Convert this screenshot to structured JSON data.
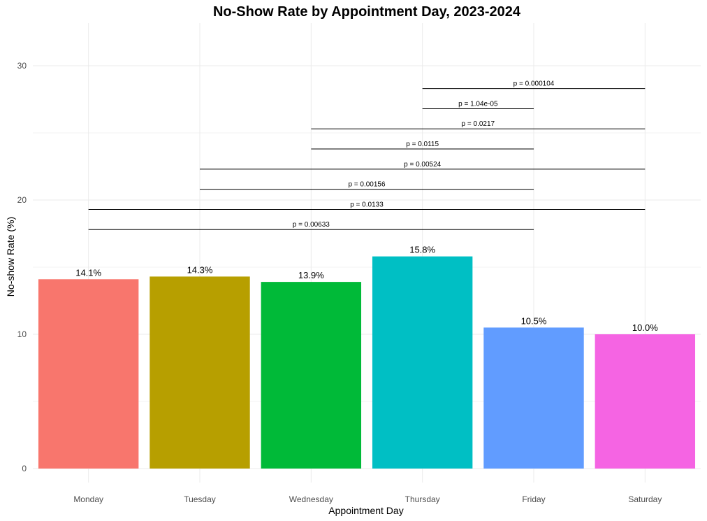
{
  "chart_data": {
    "type": "bar",
    "title": "No-Show Rate by Appointment Day, 2023-2024",
    "xlabel": "Appointment Day",
    "ylabel": "No-show Rate (%)",
    "ylim": [
      0,
      33
    ],
    "yticks": [
      0,
      10,
      20,
      30
    ],
    "grid": true,
    "legend": "none",
    "categories": [
      "Monday",
      "Tuesday",
      "Wednesday",
      "Thursday",
      "Friday",
      "Saturday"
    ],
    "values": [
      14.1,
      14.3,
      13.9,
      15.8,
      10.5,
      10.0
    ],
    "value_labels": [
      "14.1%",
      "14.3%",
      "13.9%",
      "15.8%",
      "10.5%",
      "10.0%"
    ],
    "colors": [
      "#F8766D",
      "#B79F00",
      "#00BA38",
      "#00BFC4",
      "#619CFF",
      "#F564E3"
    ],
    "comparisons": [
      {
        "from": "Monday",
        "to": "Friday",
        "y": 17.8,
        "label": "p = 0.00633"
      },
      {
        "from": "Monday",
        "to": "Saturday",
        "y": 19.3,
        "label": "p = 0.0133"
      },
      {
        "from": "Tuesday",
        "to": "Friday",
        "y": 20.8,
        "label": "p = 0.00156"
      },
      {
        "from": "Tuesday",
        "to": "Saturday",
        "y": 22.3,
        "label": "p = 0.00524"
      },
      {
        "from": "Wednesday",
        "to": "Friday",
        "y": 23.8,
        "label": "p = 0.0115"
      },
      {
        "from": "Wednesday",
        "to": "Saturday",
        "y": 25.3,
        "label": "p = 0.0217"
      },
      {
        "from": "Thursday",
        "to": "Friday",
        "y": 26.8,
        "label": "p = 1.04e-05"
      },
      {
        "from": "Thursday",
        "to": "Saturday",
        "y": 28.3,
        "label": "p = 0.000104"
      }
    ]
  }
}
